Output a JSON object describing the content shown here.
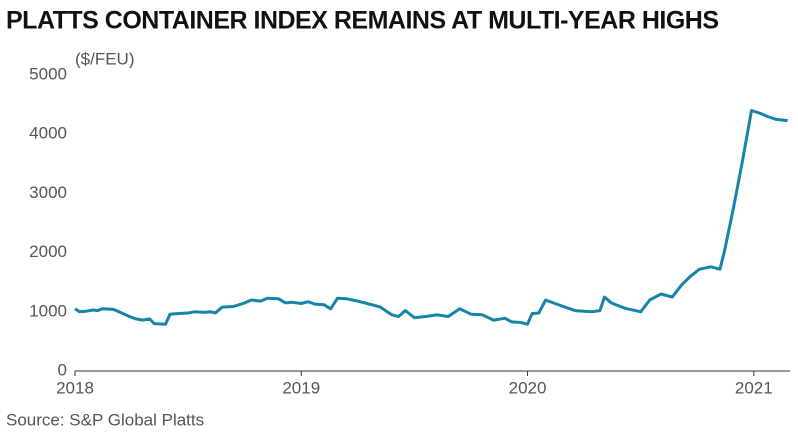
{
  "chart_data": {
    "type": "line",
    "title": "PLATTS CONTAINER INDEX REMAINS AT MULTI-YEAR HIGHS",
    "y_label": "($/FEU)",
    "source": "Source: S&P Global Platts",
    "series": [
      {
        "name": "Platts Container Index",
        "color": "#1783a9",
        "x": [
          2018.0,
          2018.02,
          2018.05,
          2018.08,
          2018.1,
          2018.12,
          2018.17,
          2018.2,
          2018.24,
          2018.27,
          2018.3,
          2018.33,
          2018.35,
          2018.4,
          2018.42,
          2018.45,
          2018.5,
          2018.53,
          2018.57,
          2018.6,
          2018.62,
          2018.65,
          2018.7,
          2018.75,
          2018.78,
          2018.82,
          2018.85,
          2018.9,
          2018.93,
          2018.96,
          2019.0,
          2019.03,
          2019.06,
          2019.1,
          2019.13,
          2019.16,
          2019.2,
          2019.25,
          2019.3,
          2019.35,
          2019.38,
          2019.4,
          2019.43,
          2019.46,
          2019.5,
          2019.55,
          2019.6,
          2019.65,
          2019.7,
          2019.75,
          2019.8,
          2019.85,
          2019.9,
          2019.93,
          2019.97,
          2020.0,
          2020.02,
          2020.05,
          2020.08,
          2020.15,
          2020.21,
          2020.28,
          2020.32,
          2020.34,
          2020.37,
          2020.43,
          2020.5,
          2020.54,
          2020.59,
          2020.64,
          2020.68,
          2020.72,
          2020.76,
          2020.81,
          2020.85,
          2020.87,
          2020.91,
          2020.95,
          2020.99,
          2021.03,
          2021.06,
          2021.1,
          2021.15
        ],
        "values": [
          1050,
          1000,
          1010,
          1030,
          1020,
          1050,
          1040,
          990,
          920,
          880,
          860,
          880,
          800,
          790,
          960,
          970,
          980,
          1000,
          990,
          1000,
          980,
          1080,
          1090,
          1150,
          1200,
          1180,
          1230,
          1220,
          1150,
          1160,
          1140,
          1170,
          1130,
          1120,
          1050,
          1230,
          1220,
          1180,
          1130,
          1080,
          1000,
          950,
          920,
          1020,
          900,
          920,
          950,
          920,
          1050,
          960,
          950,
          860,
          890,
          830,
          820,
          790,
          970,
          980,
          1200,
          1100,
          1020,
          1000,
          1020,
          1250,
          1150,
          1060,
          1000,
          1200,
          1300,
          1250,
          1450,
          1600,
          1720,
          1760,
          1720,
          2020,
          2750,
          3550,
          4400,
          4350,
          4300,
          4250,
          4230
        ]
      }
    ],
    "xlim": [
      2018,
      2021.16
    ],
    "xticks": [
      2018,
      2019,
      2020,
      2021
    ],
    "ylim": [
      0,
      5000
    ],
    "yticks": [
      0,
      1000,
      2000,
      3000,
      4000,
      5000
    ],
    "grid": false
  }
}
